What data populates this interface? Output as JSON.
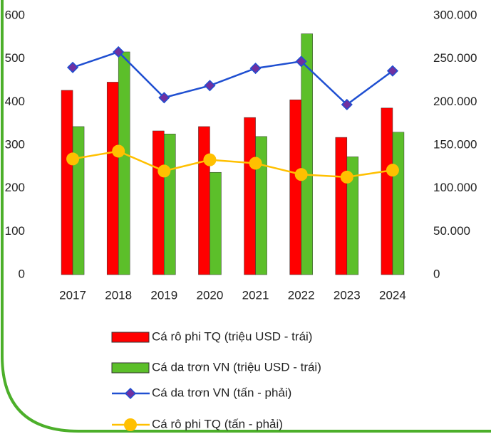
{
  "chart_data": {
    "type": "combo",
    "categories": [
      "2017",
      "2018",
      "2019",
      "2020",
      "2021",
      "2022",
      "2023",
      "2024"
    ],
    "series": [
      {
        "name": "Cá rô phi TQ (triệu USD - trái)",
        "type": "bar",
        "color": "#ff0000",
        "axis": "y",
        "values": [
          427,
          446,
          333,
          343,
          364,
          405,
          318,
          386
        ]
      },
      {
        "name": "Cá da trơn VN (triệu USD - trái)",
        "type": "bar",
        "color": "#5cbf2a",
        "axis": "y",
        "values": [
          343,
          516,
          326,
          237,
          320,
          558,
          273,
          330
        ]
      },
      {
        "name": "Cá da trơn VN (tấn - phải)",
        "type": "line",
        "marker": "diamond",
        "color": "#1f4fd1",
        "marker_color": "#7030a0",
        "axis": "y2",
        "values": [
          240000,
          258000,
          205000,
          219000,
          239000,
          247000,
          197000,
          236000
        ]
      },
      {
        "name": "Cá rô phi TQ (tấn - phải)",
        "type": "line",
        "marker": "circle",
        "color": "#ffc000",
        "axis": "y2",
        "values": [
          134000,
          143000,
          120000,
          133000,
          129000,
          116000,
          113000,
          121000
        ]
      }
    ],
    "ylim": [
      0,
      600
    ],
    "yticks": [
      0,
      100,
      200,
      300,
      400,
      500,
      600
    ],
    "y2lim": [
      0,
      300000
    ],
    "y2ticks": [
      0,
      {
        "value": 50000,
        "label": "50.000"
      },
      {
        "value": 100000,
        "label": "100.000"
      },
      {
        "value": 150000,
        "label": "150.000"
      },
      {
        "value": 200000,
        "label": "200.000"
      },
      {
        "value": 250000,
        "label": "250.000"
      },
      {
        "value": 300000,
        "label": "300.000"
      }
    ],
    "grid": false,
    "legend": "bottom"
  }
}
